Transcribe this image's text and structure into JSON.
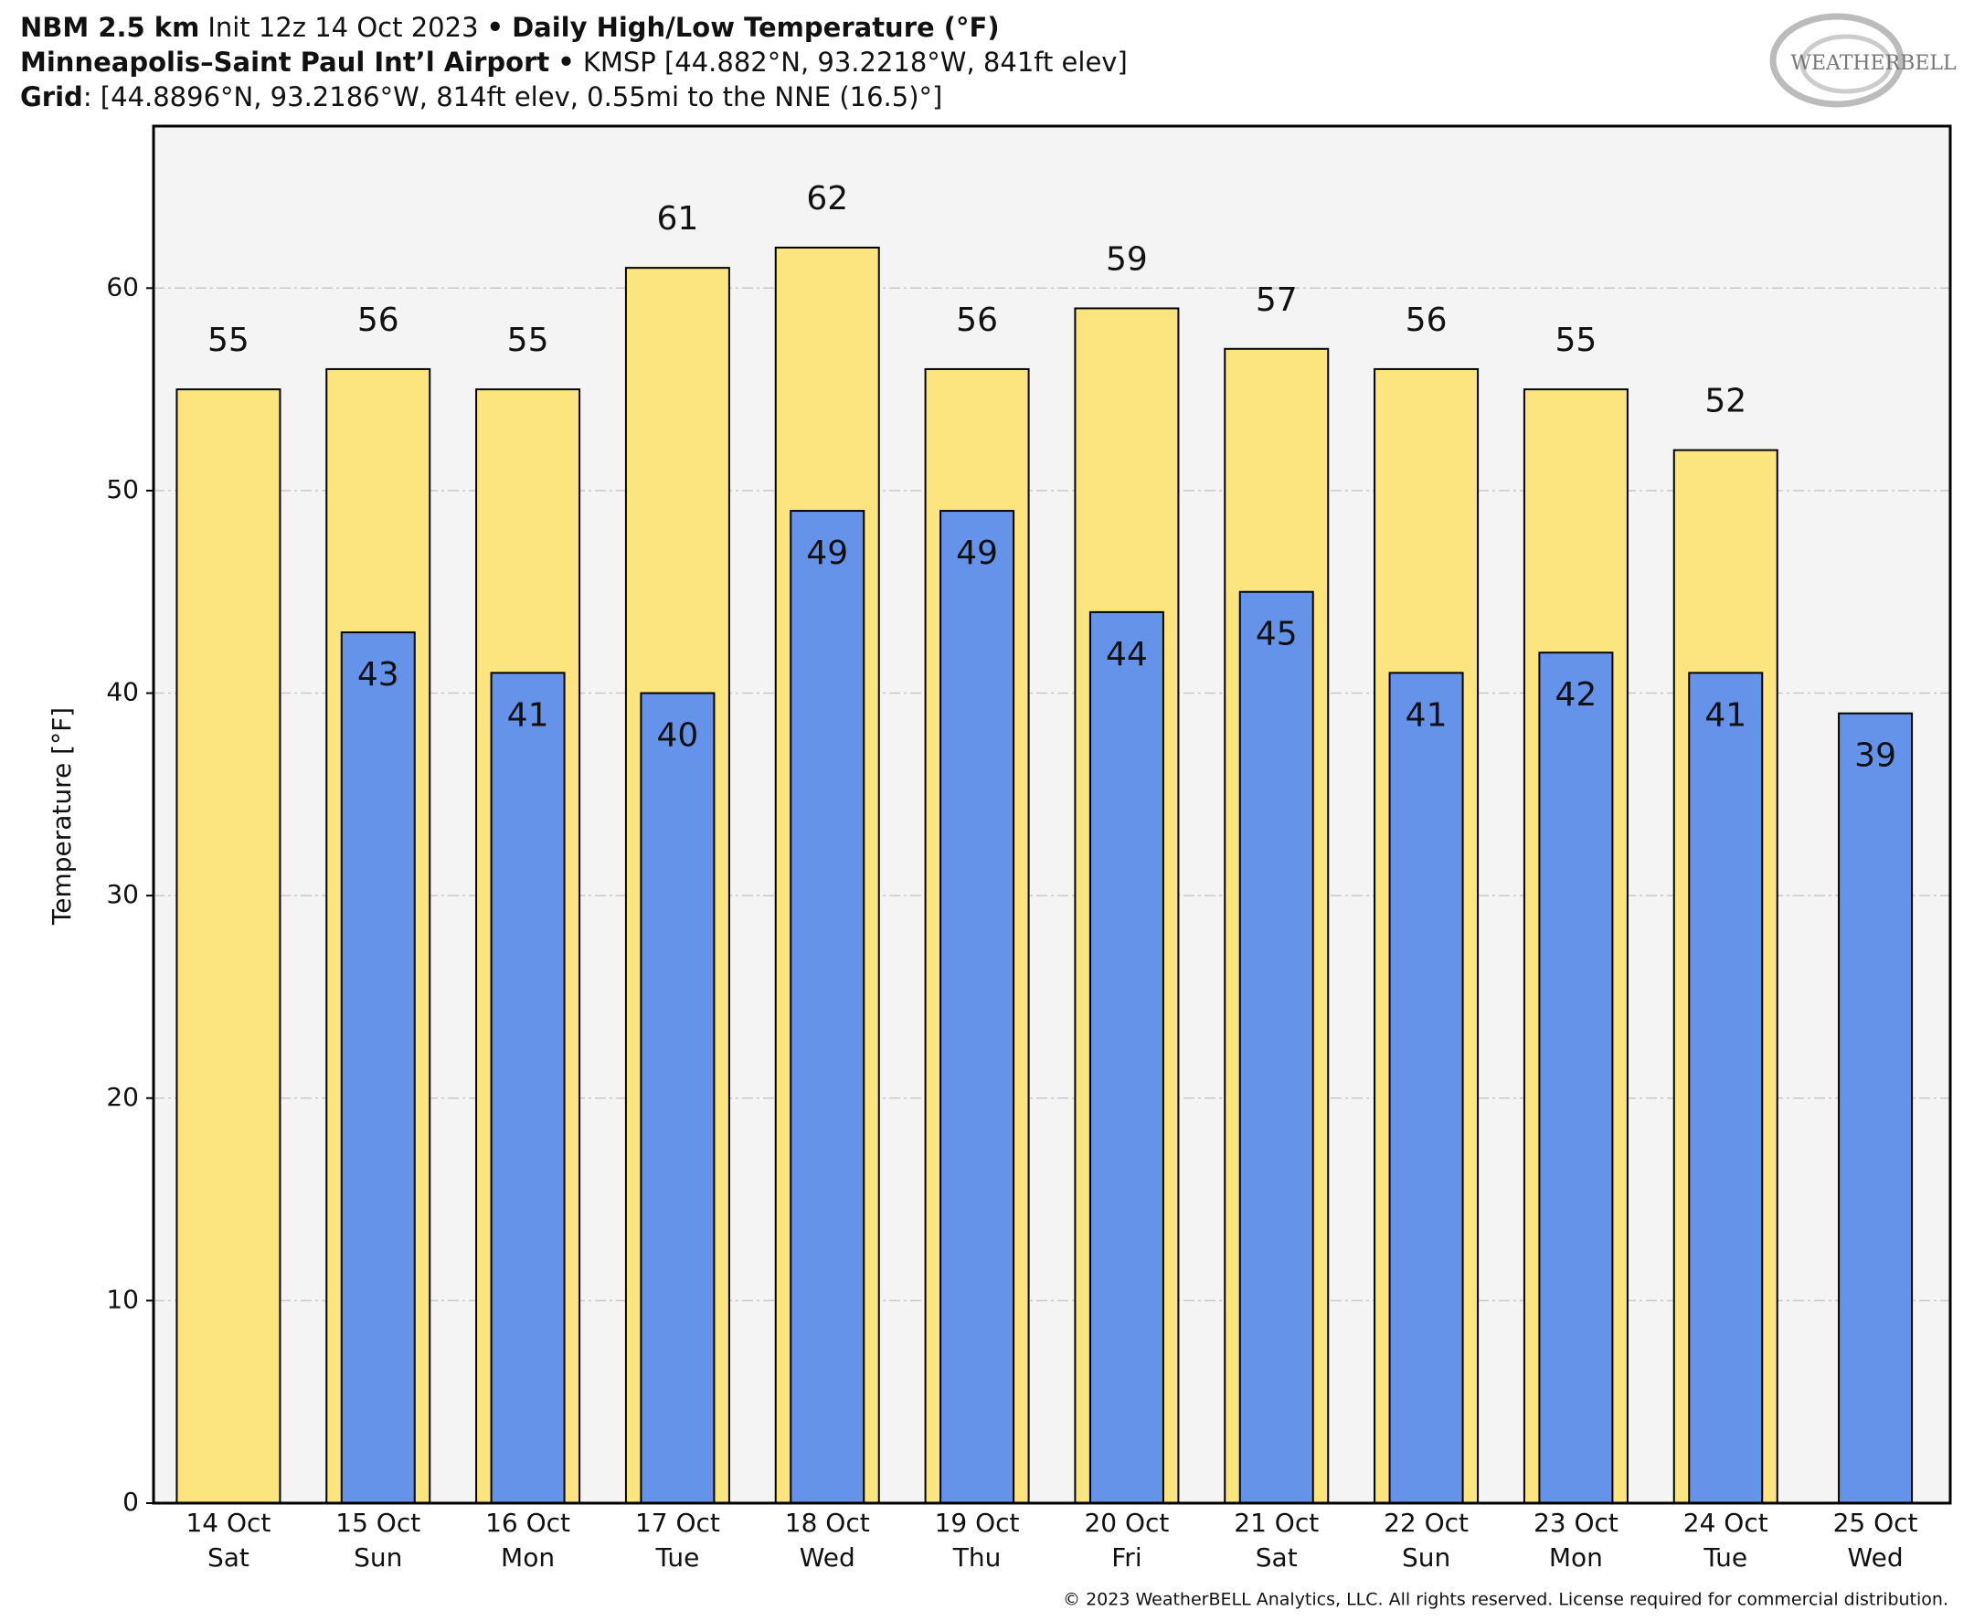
{
  "chart_data": {
    "type": "bar",
    "title_parts": [
      "NBM 2.5 km",
      "Init 12z 14 Oct 2023",
      "•",
      "Daily High/Low Temperature (°F)"
    ],
    "subtitle_parts": [
      "Minneapolis–Saint Paul Int’l Airport",
      "•",
      "KMSP [44.882°N, 93.2218°W, 841ft elev]"
    ],
    "grid_parts": [
      "Grid",
      ": [44.8896°N, 93.2186°W, 814ft elev, 0.55mi to the NNE (16.5)°]"
    ],
    "logo": "WEATHERBELL",
    "footer": "© 2023 WeatherBELL Analytics, LLC. All rights reserved. License required for commercial distribution.",
    "y_label": "Temperature [°F]",
    "categories": [
      "14 Oct",
      "15 Oct",
      "16 Oct",
      "17 Oct",
      "18 Oct",
      "19 Oct",
      "20 Oct",
      "21 Oct",
      "22 Oct",
      "23 Oct",
      "24 Oct",
      "25 Oct"
    ],
    "weekdays": [
      "Sat",
      "Sun",
      "Mon",
      "Tue",
      "Wed",
      "Thu",
      "Fri",
      "Sat",
      "Sun",
      "Mon",
      "Tue",
      "Wed"
    ],
    "series": [
      {
        "name": "High",
        "color": "#fce47e",
        "values": [
          55,
          56,
          55,
          61,
          62,
          56,
          59,
          57,
          56,
          55,
          52,
          null
        ]
      },
      {
        "name": "Low",
        "color": "#6693ea",
        "values": [
          null,
          43,
          41,
          40,
          49,
          49,
          44,
          45,
          41,
          42,
          41,
          39
        ]
      }
    ],
    "ylim": [
      0,
      68
    ],
    "yticks": [
      0,
      10,
      20,
      30,
      40,
      50,
      60
    ],
    "grid": true
  }
}
